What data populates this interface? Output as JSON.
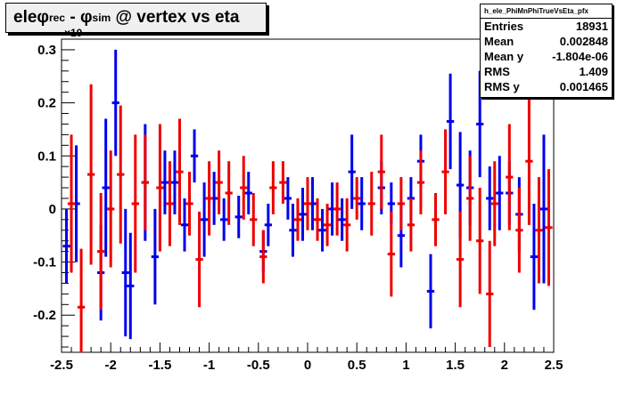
{
  "title": {
    "prefix": "ele ",
    "phi1": "φ",
    "sub1": "rec",
    "mid": " - ",
    "phi2": "φ",
    "sub2": "sim",
    "suffix": " @ vertex vs eta"
  },
  "stats": {
    "name": "h_ele_PhiMnPhiTrueVsEta_pfx",
    "rows": [
      {
        "label": "Entries",
        "value": "18931"
      },
      {
        "label": "Mean",
        "value": "0.002848"
      },
      {
        "label": "Mean y",
        "value": "-1.804e-06"
      },
      {
        "label": "RMS",
        "value": "1.409"
      },
      {
        "label": "RMS y",
        "value": "0.001465"
      }
    ]
  },
  "y_exponent": "×10",
  "colors": {
    "blue": "#0000ee",
    "red": "#ee0000",
    "title_bg": "#f0f0f0"
  },
  "chart_data": {
    "type": "scatter",
    "xlim": [
      -2.5,
      2.5
    ],
    "ylim": [
      -0.27,
      0.32
    ],
    "xticks": [
      -2.5,
      -2,
      -1.5,
      -1,
      -0.5,
      0,
      0.5,
      1,
      1.5,
      2,
      2.5
    ],
    "xtick_labels": [
      "-2.5",
      "-2",
      "-1.5",
      "-1",
      "-0.5",
      "0",
      "0.5",
      "1",
      "1.5",
      "2",
      "2.5"
    ],
    "yticks": [
      -0.2,
      -0.1,
      0,
      0.1,
      0.2,
      0.3
    ],
    "ytick_labels": [
      "-0.2",
      "-0.1",
      "0",
      "0.1",
      "0.2",
      "0.3"
    ],
    "grid": false,
    "series": [
      {
        "color": "blue",
        "points": [
          {
            "x": -2.45,
            "y": -0.07,
            "err": 0.07
          },
          {
            "x": -2.35,
            "y": 0.01,
            "err": 0.11
          },
          {
            "x": -2.1,
            "y": -0.12,
            "err": 0.09
          },
          {
            "x": -2.05,
            "y": 0.04,
            "err": 0.13
          },
          {
            "x": -1.95,
            "y": 0.2,
            "err": 0.1
          },
          {
            "x": -1.85,
            "y": -0.12,
            "err": 0.12
          },
          {
            "x": -1.8,
            "y": -0.145,
            "err": 0.1
          },
          {
            "x": -1.65,
            "y": 0.05,
            "err": 0.11
          },
          {
            "x": -1.55,
            "y": -0.09,
            "err": 0.09
          },
          {
            "x": -1.45,
            "y": 0.05,
            "err": 0.06
          },
          {
            "x": -1.35,
            "y": 0.05,
            "err": 0.06
          },
          {
            "x": -1.25,
            "y": -0.03,
            "err": 0.05
          },
          {
            "x": -1.15,
            "y": 0.1,
            "err": 0.05
          },
          {
            "x": -1.05,
            "y": -0.02,
            "err": 0.07
          },
          {
            "x": -0.95,
            "y": 0.02,
            "err": 0.05
          },
          {
            "x": -0.85,
            "y": -0.02,
            "err": 0.04
          },
          {
            "x": -0.7,
            "y": -0.015,
            "err": 0.04
          },
          {
            "x": -0.6,
            "y": 0.03,
            "err": 0.04
          },
          {
            "x": -0.45,
            "y": -0.08,
            "err": 0.04
          },
          {
            "x": -0.4,
            "y": -0.03,
            "err": 0.04
          },
          {
            "x": -0.2,
            "y": 0.02,
            "err": 0.04
          },
          {
            "x": -0.15,
            "y": -0.04,
            "err": 0.05
          },
          {
            "x": -0.05,
            "y": -0.01,
            "err": 0.05
          },
          {
            "x": 0.05,
            "y": 0.01,
            "err": 0.05
          },
          {
            "x": 0.15,
            "y": -0.04,
            "err": 0.04
          },
          {
            "x": 0.25,
            "y": 0,
            "err": 0.05
          },
          {
            "x": 0.35,
            "y": -0.02,
            "err": 0.04
          },
          {
            "x": 0.45,
            "y": 0.07,
            "err": 0.07
          },
          {
            "x": 0.55,
            "y": 0.01,
            "err": 0.05
          },
          {
            "x": 0.75,
            "y": 0.04,
            "err": 0.05
          },
          {
            "x": 0.85,
            "y": 0.01,
            "err": 0.04
          },
          {
            "x": 0.95,
            "y": -0.05,
            "err": 0.06
          },
          {
            "x": 1.05,
            "y": 0.02,
            "err": 0.04
          },
          {
            "x": 1.15,
            "y": 0.09,
            "err": 0.05
          },
          {
            "x": 1.25,
            "y": -0.155,
            "err": 0.07
          },
          {
            "x": 1.45,
            "y": 0.165,
            "err": 0.09
          },
          {
            "x": 1.55,
            "y": 0.045,
            "err": 0.1
          },
          {
            "x": 1.65,
            "y": 0.04,
            "err": 0.07
          },
          {
            "x": 1.75,
            "y": 0.16,
            "err": 0.1
          },
          {
            "x": 1.85,
            "y": 0.02,
            "err": 0.06
          },
          {
            "x": 1.95,
            "y": 0.03,
            "err": 0.07
          },
          {
            "x": 2.05,
            "y": 0.03,
            "err": 0.06
          },
          {
            "x": 2.15,
            "y": -0.01,
            "err": 0.07
          },
          {
            "x": 2.3,
            "y": -0.09,
            "err": 0.1
          },
          {
            "x": 2.4,
            "y": 0,
            "err": 0.14
          }
        ]
      },
      {
        "color": "red",
        "points": [
          {
            "x": -2.4,
            "y": 0.01,
            "err": 0.13
          },
          {
            "x": -2.3,
            "y": -0.185,
            "err": 0.11
          },
          {
            "x": -2.2,
            "y": 0.065,
            "err": 0.17
          },
          {
            "x": -2.1,
            "y": -0.08,
            "err": 0.11
          },
          {
            "x": -2.0,
            "y": 0,
            "err": 0.11
          },
          {
            "x": -1.9,
            "y": 0.065,
            "err": 0.13
          },
          {
            "x": -1.75,
            "y": 0.01,
            "err": 0.13
          },
          {
            "x": -1.65,
            "y": 0.05,
            "err": 0.09
          },
          {
            "x": -1.5,
            "y": 0.04,
            "err": 0.12
          },
          {
            "x": -1.4,
            "y": 0.01,
            "err": 0.08
          },
          {
            "x": -1.3,
            "y": 0.07,
            "err": 0.1
          },
          {
            "x": -1.2,
            "y": 0.01,
            "err": 0.06
          },
          {
            "x": -1.1,
            "y": -0.095,
            "err": 0.09
          },
          {
            "x": -1.0,
            "y": 0.02,
            "err": 0.07
          },
          {
            "x": -0.9,
            "y": 0.05,
            "err": 0.06
          },
          {
            "x": -0.8,
            "y": 0.03,
            "err": 0.06
          },
          {
            "x": -0.65,
            "y": 0.04,
            "err": 0.06
          },
          {
            "x": -0.55,
            "y": -0.02,
            "err": 0.05
          },
          {
            "x": -0.45,
            "y": -0.09,
            "err": 0.05
          },
          {
            "x": -0.35,
            "y": 0.04,
            "err": 0.05
          },
          {
            "x": -0.25,
            "y": 0.05,
            "err": 0.04
          },
          {
            "x": -0.1,
            "y": -0.02,
            "err": 0.04
          },
          {
            "x": 0.0,
            "y": 0.01,
            "err": 0.05
          },
          {
            "x": 0.1,
            "y": -0.02,
            "err": 0.04
          },
          {
            "x": 0.2,
            "y": -0.03,
            "err": 0.04
          },
          {
            "x": 0.3,
            "y": 0,
            "err": 0.05
          },
          {
            "x": 0.4,
            "y": -0.03,
            "err": 0.05
          },
          {
            "x": 0.5,
            "y": 0.02,
            "err": 0.04
          },
          {
            "x": 0.65,
            "y": 0.01,
            "err": 0.06
          },
          {
            "x": 0.75,
            "y": 0.07,
            "err": 0.07
          },
          {
            "x": 0.85,
            "y": -0.085,
            "err": 0.08
          },
          {
            "x": 0.95,
            "y": 0.01,
            "err": 0.05
          },
          {
            "x": 1.05,
            "y": -0.03,
            "err": 0.05
          },
          {
            "x": 1.15,
            "y": 0.05,
            "err": 0.06
          },
          {
            "x": 1.3,
            "y": -0.02,
            "err": 0.05
          },
          {
            "x": 1.4,
            "y": 0.07,
            "err": 0.08
          },
          {
            "x": 1.55,
            "y": -0.095,
            "err": 0.09
          },
          {
            "x": 1.65,
            "y": 0.02,
            "err": 0.08
          },
          {
            "x": 1.75,
            "y": -0.06,
            "err": 0.1
          },
          {
            "x": 1.85,
            "y": -0.16,
            "err": 0.1
          },
          {
            "x": 1.9,
            "y": 0.01,
            "err": 0.08
          },
          {
            "x": 2.05,
            "y": 0.06,
            "err": 0.1
          },
          {
            "x": 2.15,
            "y": -0.04,
            "err": 0.08
          },
          {
            "x": 2.25,
            "y": 0.09,
            "err": 0.12
          },
          {
            "x": 2.35,
            "y": -0.04,
            "err": 0.1
          },
          {
            "x": 2.45,
            "y": -0.035,
            "err": 0.11
          }
        ]
      }
    ]
  }
}
